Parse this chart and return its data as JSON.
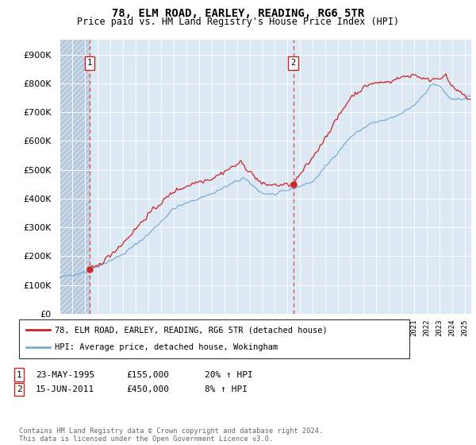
{
  "title": "78, ELM ROAD, EARLEY, READING, RG6 5TR",
  "subtitle": "Price paid vs. HM Land Registry's House Price Index (HPI)",
  "ylim": [
    0,
    950000
  ],
  "yticks": [
    0,
    100000,
    200000,
    300000,
    400000,
    500000,
    600000,
    700000,
    800000,
    900000
  ],
  "ytick_labels": [
    "£0",
    "£100K",
    "£200K",
    "£300K",
    "£400K",
    "£500K",
    "£600K",
    "£700K",
    "£800K",
    "£900K"
  ],
  "background_color": "#ffffff",
  "plot_bg_color": "#dce9f5",
  "hatch_bg_color": "#c8d8ea",
  "grid_color": "#ffffff",
  "red_line_color": "#cc2222",
  "blue_line_color": "#7aadd4",
  "ann1_x": 1995.38,
  "ann2_x": 2011.45,
  "legend_line1": "78, ELM ROAD, EARLEY, READING, RG6 5TR (detached house)",
  "legend_line2": "HPI: Average price, detached house, Wokingham",
  "ann1_date": "23-MAY-1995",
  "ann1_price": "£155,000",
  "ann1_pct": "20% ↑ HPI",
  "ann2_date": "15-JUN-2011",
  "ann2_price": "£450,000",
  "ann2_pct": "8% ↑ HPI",
  "footer": "Contains HM Land Registry data © Crown copyright and database right 2024.\nThis data is licensed under the Open Government Licence v3.0.",
  "xmin": 1993,
  "xmax": 2025.5
}
